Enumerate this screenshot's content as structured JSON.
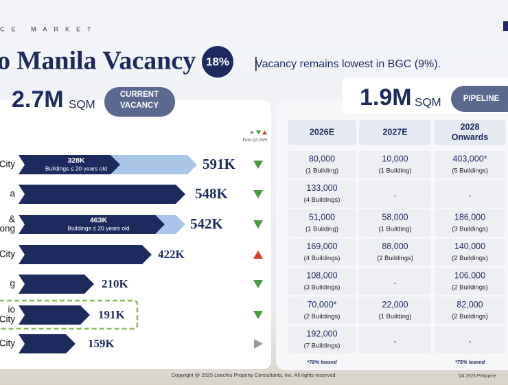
{
  "header": {
    "section": "CE MARKET",
    "title": "o Manila Vacancy",
    "badge": "18%",
    "subtitle": "Vacancy remains lowest in BGC (9%)."
  },
  "vacancy": {
    "total": "2.7M",
    "unit": "SQM",
    "tag": [
      "CURRENT",
      "VACANCY"
    ],
    "legend_note": "From Q3 2025",
    "rows": [
      {
        "label": [
          "City"
        ],
        "value": "591K",
        "inner": [
          "328K",
          "Buildings ≤ 20 years old"
        ],
        "trend": "down"
      },
      {
        "label": [
          "a"
        ],
        "value": "548K",
        "trend": "down"
      },
      {
        "label": [
          "&",
          "uyong"
        ],
        "value": "542K",
        "inner": [
          "463K",
          "Buildings ≤ 20 years old"
        ],
        "trend": "down"
      },
      {
        "label": [
          "City"
        ],
        "value": "422K",
        "trend": "up"
      },
      {
        "label": [
          "g"
        ],
        "value": "210K",
        "trend": "down"
      },
      {
        "label": [
          "io",
          "City"
        ],
        "value": "191K",
        "trend": "down"
      },
      {
        "label": [
          "City"
        ],
        "value": "159K",
        "trend": "flat"
      }
    ]
  },
  "pipeline": {
    "total": "1.9M",
    "unit": "SQM",
    "tag": "PIPELINE",
    "columns": [
      [
        "2026E"
      ],
      [
        "2027E"
      ],
      [
        "2028",
        "Onwards"
      ]
    ],
    "rows": [
      [
        [
          "80,000",
          "(1 Building)"
        ],
        [
          "10,000",
          "(1 Building)"
        ],
        [
          "403,000*",
          "(5 Buildings)"
        ]
      ],
      [
        [
          "133,000",
          "(4 Buildings)"
        ],
        [
          "-"
        ],
        [
          "-"
        ]
      ],
      [
        [
          "51,000",
          "(1 Building)"
        ],
        [
          "58,000",
          "(1 Building)"
        ],
        [
          "186,000",
          "(3 Buildings)"
        ]
      ],
      [
        [
          "169,000",
          "(4 Buildings)"
        ],
        [
          "88,000",
          "(2 Buildings)"
        ],
        [
          "140,000",
          "(2 Buildings)"
        ]
      ],
      [
        [
          "108,000",
          "(3 Buildings)"
        ],
        [
          "-"
        ],
        [
          "106,000",
          "(2 Buildings)"
        ]
      ],
      [
        [
          "70,000*",
          "(2 Buildings)"
        ],
        [
          "22,000",
          "(1 Building)"
        ],
        [
          "82,000",
          "(2 Buildings)"
        ]
      ],
      [
        [
          "192,000",
          "(7 Buildings)"
        ],
        [
          "-"
        ],
        [
          "-"
        ]
      ]
    ],
    "notes": [
      "*78% leased",
      null,
      "*75% leased"
    ]
  },
  "footer": {
    "copyright": "Copyright @ 2025 Leechiu Property Consultants, Inc. All rights reserved.",
    "edition": "Q4 2025 Philippine"
  }
}
